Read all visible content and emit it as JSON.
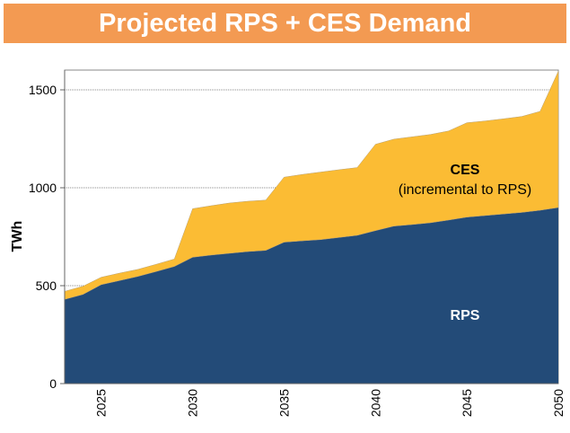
{
  "chart_data": {
    "type": "area",
    "stacked": true,
    "title": "Projected RPS + CES Demand",
    "xlabel": "",
    "ylabel": "TWh",
    "xlim": [
      2023,
      2050
    ],
    "ylim": [
      0,
      1600
    ],
    "yticks": [
      0,
      500,
      1000,
      1500
    ],
    "xticks": [
      2025,
      2030,
      2035,
      2040,
      2045,
      2050
    ],
    "grid": "horizontal dotted",
    "x": [
      2023,
      2024,
      2025,
      2026,
      2027,
      2028,
      2029,
      2030,
      2031,
      2032,
      2033,
      2034,
      2035,
      2036,
      2037,
      2038,
      2039,
      2040,
      2041,
      2042,
      2043,
      2044,
      2045,
      2046,
      2047,
      2048,
      2049,
      2050
    ],
    "series": [
      {
        "name": "RPS",
        "color": "#234B78",
        "values": [
          430,
          455,
          505,
          526,
          547,
          572,
          598,
          645,
          656,
          665,
          674,
          680,
          722,
          729,
          735,
          746,
          757,
          781,
          804,
          812,
          821,
          835,
          850,
          858,
          866,
          874,
          885,
          899
        ]
      },
      {
        "name": "CES",
        "sublabel": "(incremental to RPS)",
        "color": "#FBBC34",
        "values": [
          41,
          42,
          38,
          38,
          36,
          37,
          38,
          248,
          252,
          257,
          257,
          257,
          332,
          339,
          345,
          346,
          346,
          441,
          444,
          448,
          451,
          455,
          482,
          483,
          486,
          490,
          505,
          696
        ]
      }
    ]
  }
}
